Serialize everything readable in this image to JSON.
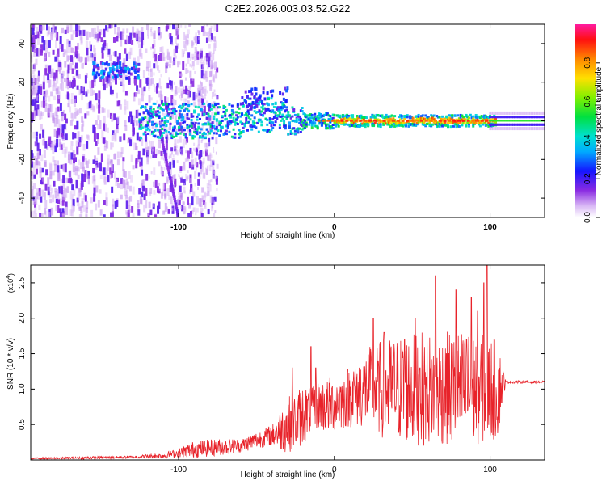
{
  "title": "C2E2.2026.003.03.52.G22",
  "chart_data": [
    {
      "type": "heatmap",
      "title": "C2E2.2026.003.03.52.G22",
      "xlabel": "Height of straight line (km)",
      "ylabel": "Frequency (Hz)",
      "xlim": [
        -195,
        135
      ],
      "ylim": [
        -50,
        50
      ],
      "xticks": [
        -100,
        0,
        100
      ],
      "yticks": [
        -40,
        -20,
        0,
        20,
        40
      ],
      "colorbar": {
        "label": "Normalized spectral amplitude",
        "range": [
          0.0,
          1.0
        ],
        "ticks": [
          0.0,
          0.2,
          0.4,
          0.6,
          0.8
        ],
        "tick_labels": [
          "0.0",
          "0.2",
          "0.4",
          "0.6",
          "0.8"
        ]
      },
      "description_points": [
        {
          "x": -150,
          "y": 28,
          "amplitude": 0.4
        },
        {
          "x": -130,
          "y": 24,
          "amplitude": 0.35
        },
        {
          "x": -120,
          "y": 0,
          "amplitude": 0.3
        },
        {
          "x": -60,
          "y": 2,
          "amplitude": 0.45
        },
        {
          "x": -40,
          "y": 8,
          "amplitude": 0.35
        },
        {
          "x": -10,
          "y": 0,
          "amplitude": 0.5
        },
        {
          "x": 10,
          "y": 0,
          "amplitude": 0.9
        },
        {
          "x": 50,
          "y": 0,
          "amplitude": 0.85
        },
        {
          "x": 100,
          "y": 0,
          "amplitude": 0.7
        },
        {
          "x": 130,
          "y": 0,
          "amplitude": 0.4
        }
      ]
    },
    {
      "type": "line",
      "xlabel": "Height of straight line (km)",
      "ylabel": "SNR (10 * v/v)",
      "y_multiplier": "(x10",
      "y_multiplier_exp": "4",
      "y_multiplier_close": ")",
      "xlim": [
        -195,
        135
      ],
      "ylim": [
        0,
        2.75
      ],
      "xticks": [
        -100,
        0,
        100
      ],
      "yticks": [
        0.5,
        1.0,
        1.5,
        2.0,
        2.5
      ],
      "ytick_labels": [
        "0.5",
        "1.0",
        "1.5",
        "2.0",
        "2.5"
      ],
      "series": [
        {
          "name": "SNR",
          "color": "#e8232a",
          "envelope_x": [
            -195,
            -160,
            -130,
            -110,
            -100,
            -90,
            -75,
            -60,
            -50,
            -40,
            -35,
            -30,
            -25,
            -20,
            -15,
            -10,
            -5,
            0,
            10,
            20,
            25,
            30,
            40,
            50,
            60,
            70,
            80,
            90,
            100,
            105,
            110,
            135
          ],
          "envelope_mean": [
            0.02,
            0.03,
            0.04,
            0.06,
            0.1,
            0.15,
            0.18,
            0.2,
            0.28,
            0.35,
            0.42,
            0.5,
            0.55,
            0.65,
            0.7,
            0.78,
            0.75,
            0.8,
            0.9,
            1.0,
            1.05,
            1.0,
            1.0,
            1.0,
            1.0,
            1.0,
            1.0,
            1.0,
            1.0,
            1.0,
            1.1,
            1.1
          ],
          "envelope_amp": [
            0.01,
            0.02,
            0.02,
            0.04,
            0.06,
            0.12,
            0.12,
            0.1,
            0.12,
            0.15,
            0.3,
            0.4,
            0.4,
            0.45,
            0.3,
            0.35,
            0.4,
            0.4,
            0.45,
            0.55,
            0.6,
            0.7,
            0.75,
            0.8,
            0.8,
            0.8,
            0.85,
            0.8,
            0.75,
            0.7,
            0.02,
            0.02
          ],
          "peaks_x": [
            -27,
            -15,
            -12,
            25,
            28,
            32,
            45,
            52,
            55,
            65,
            72,
            78,
            85,
            88,
            92,
            96,
            98
          ],
          "peaks_y": [
            1.3,
            1.6,
            1.3,
            2.0,
            1.4,
            1.8,
            1.7,
            2.0,
            1.3,
            2.6,
            1.5,
            2.4,
            1.7,
            2.3,
            2.1,
            2.5,
            2.75
          ]
        }
      ]
    }
  ]
}
